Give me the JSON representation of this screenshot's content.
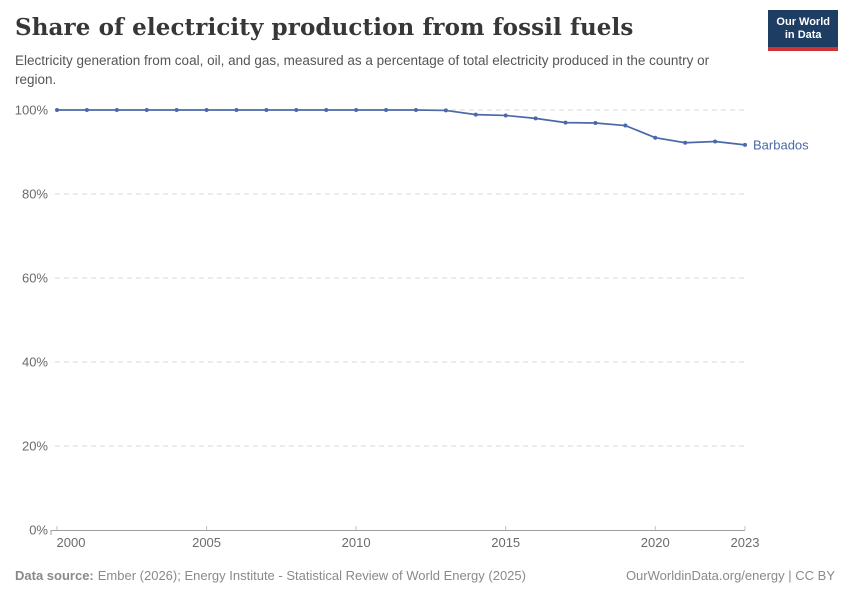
{
  "header": {
    "title": "Share of electricity production from fossil fuels",
    "subtitle": "Electricity generation from coal, oil, and gas, measured as a percentage of total electricity produced in the country or region."
  },
  "logo": {
    "line1": "Our World",
    "line2": "in Data",
    "background_color": "#1d3d63",
    "accent_color": "#cf3235"
  },
  "chart_data": {
    "type": "line",
    "title": "Share of electricity production from fossil fuels",
    "x": [
      2000,
      2001,
      2002,
      2003,
      2004,
      2005,
      2006,
      2007,
      2008,
      2009,
      2010,
      2011,
      2012,
      2013,
      2014,
      2015,
      2016,
      2017,
      2018,
      2019,
      2020,
      2021,
      2022,
      2023
    ],
    "series": [
      {
        "name": "Barbados",
        "color": "#4B69A8",
        "values": [
          100,
          100,
          100,
          100,
          100,
          100,
          100,
          100,
          100,
          100,
          100,
          100,
          100,
          99.9,
          98.9,
          98.7,
          98.0,
          97.0,
          96.9,
          96.3,
          93.4,
          92.2,
          92.5,
          91.7
        ]
      }
    ],
    "unit": "%",
    "xlabel": "",
    "ylabel": "",
    "ylim": [
      0,
      100
    ],
    "yticks": [
      0,
      20,
      40,
      60,
      80,
      100
    ],
    "xticks": [
      2000,
      2005,
      2010,
      2015,
      2020,
      2023
    ],
    "grid": "horizontal-dashed",
    "legend": "series-end-label"
  },
  "footer": {
    "source_label": "Data source:",
    "source_text": "Ember (2026); Energy Institute - Statistical Review of World Energy (2025)",
    "attribution": "OurWorldinData.org/energy | CC BY"
  }
}
